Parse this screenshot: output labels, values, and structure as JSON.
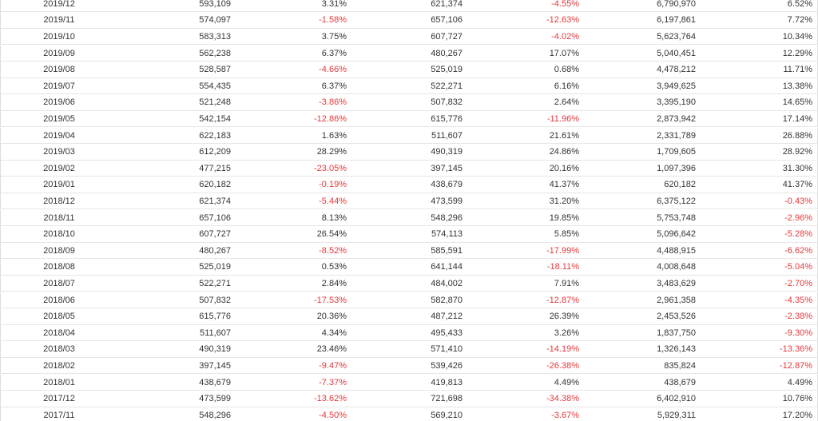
{
  "table": {
    "rows": [
      [
        "2019/12",
        "593,109",
        "3.31%",
        "621,374",
        "-4.55%",
        "6,790,970",
        "6.52%"
      ],
      [
        "2019/11",
        "574,097",
        "-1.58%",
        "657,106",
        "-12.63%",
        "6,197,861",
        "7.72%"
      ],
      [
        "2019/10",
        "583,313",
        "3.75%",
        "607,727",
        "-4.02%",
        "5,623,764",
        "10.34%"
      ],
      [
        "2019/09",
        "562,238",
        "6.37%",
        "480,267",
        "17.07%",
        "5,040,451",
        "12.29%"
      ],
      [
        "2019/08",
        "528,587",
        "-4.66%",
        "525,019",
        "0.68%",
        "4,478,212",
        "11.71%"
      ],
      [
        "2019/07",
        "554,435",
        "6.37%",
        "522,271",
        "6.16%",
        "3,949,625",
        "13.38%"
      ],
      [
        "2019/06",
        "521,248",
        "-3.86%",
        "507,832",
        "2.64%",
        "3,395,190",
        "14.65%"
      ],
      [
        "2019/05",
        "542,154",
        "-12.86%",
        "615,776",
        "-11.96%",
        "2,873,942",
        "17.14%"
      ],
      [
        "2019/04",
        "622,183",
        "1.63%",
        "511,607",
        "21.61%",
        "2,331,789",
        "26.88%"
      ],
      [
        "2019/03",
        "612,209",
        "28.29%",
        "490,319",
        "24.86%",
        "1,709,605",
        "28.92%"
      ],
      [
        "2019/02",
        "477,215",
        "-23.05%",
        "397,145",
        "20.16%",
        "1,097,396",
        "31.30%"
      ],
      [
        "2019/01",
        "620,182",
        "-0.19%",
        "438,679",
        "41.37%",
        "620,182",
        "41.37%"
      ],
      [
        "2018/12",
        "621,374",
        "-5.44%",
        "473,599",
        "31.20%",
        "6,375,122",
        "-0.43%"
      ],
      [
        "2018/11",
        "657,106",
        "8.13%",
        "548,296",
        "19.85%",
        "5,753,748",
        "-2.96%"
      ],
      [
        "2018/10",
        "607,727",
        "26.54%",
        "574,113",
        "5.85%",
        "5,096,642",
        "-5.28%"
      ],
      [
        "2018/09",
        "480,267",
        "-8.52%",
        "585,591",
        "-17.99%",
        "4,488,915",
        "-6.62%"
      ],
      [
        "2018/08",
        "525,019",
        "0.53%",
        "641,144",
        "-18.11%",
        "4,008,648",
        "-5.04%"
      ],
      [
        "2018/07",
        "522,271",
        "2.84%",
        "484,002",
        "7.91%",
        "3,483,629",
        "-2.70%"
      ],
      [
        "2018/06",
        "507,832",
        "-17.53%",
        "582,870",
        "-12.87%",
        "2,961,358",
        "-4.35%"
      ],
      [
        "2018/05",
        "615,776",
        "20.36%",
        "487,212",
        "26.39%",
        "2,453,526",
        "-2.38%"
      ],
      [
        "2018/04",
        "511,607",
        "4.34%",
        "495,433",
        "3.26%",
        "1,837,750",
        "-9.30%"
      ],
      [
        "2018/03",
        "490,319",
        "23.46%",
        "571,410",
        "-14.19%",
        "1,326,143",
        "-13.36%"
      ],
      [
        "2018/02",
        "397,145",
        "-9.47%",
        "539,426",
        "-26.38%",
        "835,824",
        "-12.87%"
      ],
      [
        "2018/01",
        "438,679",
        "-7.37%",
        "419,813",
        "4.49%",
        "438,679",
        "4.49%"
      ],
      [
        "2017/12",
        "473,599",
        "-13.62%",
        "721,698",
        "-34.38%",
        "6,402,910",
        "10.76%"
      ],
      [
        "2017/11",
        "548,296",
        "-4.50%",
        "569,210",
        "-3.67%",
        "5,929,311",
        "17.20%"
      ]
    ]
  }
}
